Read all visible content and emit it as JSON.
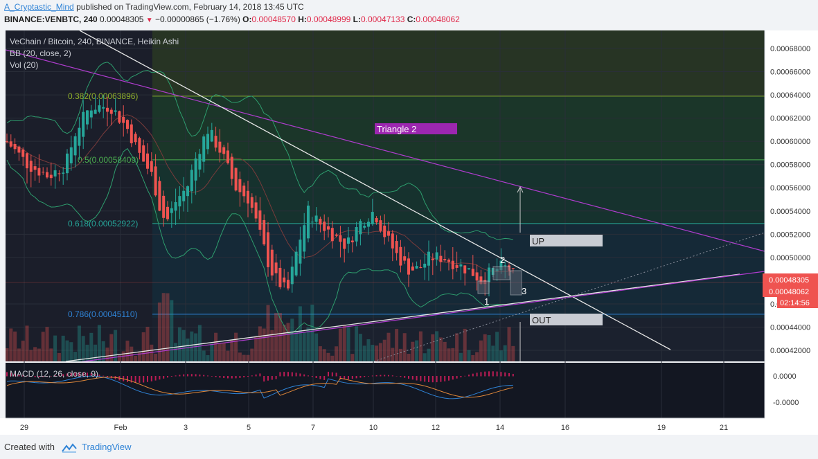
{
  "header": {
    "author": "A_Cryptastic_Mind",
    "published_text": "published on TradingView.com, February 14, 2018 13:45 UTC",
    "symbol": "BINANCE:VENBTC, 240",
    "last": "0.00048305",
    "change": "−0.00000865 (−1.76%)",
    "o_label": "O:",
    "o_value": "0.00048570",
    "h_label": "H:",
    "h_value": "0.00048999",
    "l_label": "L:",
    "l_value": "0.00047133",
    "c_label": "C:",
    "c_value": "0.00048062"
  },
  "legend": {
    "title": "VeChain / Bitcoin, 240, BINANCE, Heikin Ashi",
    "bb": "BB (20, close, 2)",
    "vol": "Vol (20)",
    "macd": "MACD (12, 26, close, 9)"
  },
  "annotations": {
    "triangle": "Triangle 2",
    "up": "UP",
    "out": "OUT",
    "wave_1": "1",
    "wave_2": "2",
    "wave_3": "3"
  },
  "fib_levels": [
    {
      "label": "0.382(0.00063896)",
      "price": 0.00063896,
      "color": "#8fb02a"
    },
    {
      "label": "0.5(0.00058409)",
      "price": 0.00058409,
      "color": "#4caf50"
    },
    {
      "label": "0.618(0.00052922)",
      "price": 0.00052922,
      "color": "#26a69a"
    },
    {
      "label": "0.786(0.00045110)",
      "price": 0.0004511,
      "color": "#2f83d6"
    }
  ],
  "price_axis": [
    "0.00068000",
    "0.00066000",
    "0.00064000",
    "0.00062000",
    "0.00060000",
    "0.00058000",
    "0.00056000",
    "0.00054000",
    "0.00052000",
    "0.00050000",
    "0.00046000",
    "0.00044000",
    "0.00042000"
  ],
  "macd_axis": [
    "0.0000",
    "-0.0000"
  ],
  "price_tags": {
    "last": "0.00048305",
    "close": "0.00048062",
    "countdown": "02:14:56"
  },
  "time_axis": [
    "29",
    "Feb",
    "3",
    "5",
    "7",
    "10",
    "12",
    "14",
    "16",
    "19",
    "21"
  ],
  "colors": {
    "up": "#26a69a",
    "down": "#ef5350",
    "magenta": "#b03ccf",
    "bb": "#2e9e6e"
  },
  "footer": {
    "created_with": "Created with",
    "brand": "TradingView"
  }
}
